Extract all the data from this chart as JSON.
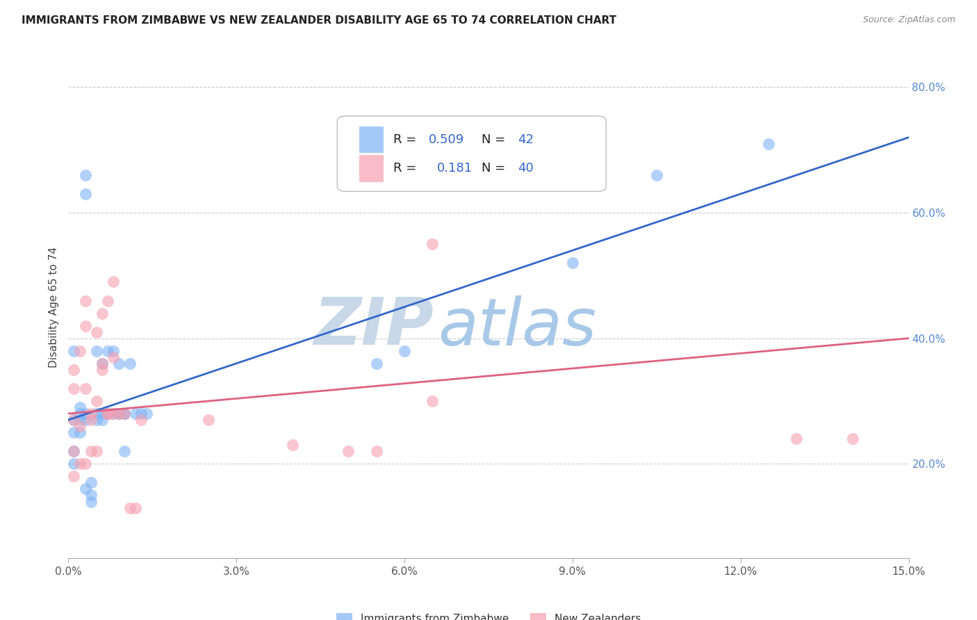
{
  "title": "IMMIGRANTS FROM ZIMBABWE VS NEW ZEALANDER DISABILITY AGE 65 TO 74 CORRELATION CHART",
  "source": "Source: ZipAtlas.com",
  "ylabel": "Disability Age 65 to 74",
  "xlim": [
    0.0,
    0.15
  ],
  "ylim": [
    0.05,
    0.85
  ],
  "xticks": [
    0.0,
    0.03,
    0.06,
    0.09,
    0.12,
    0.15
  ],
  "xtick_labels": [
    "0.0%",
    "3.0%",
    "6.0%",
    "9.0%",
    "12.0%",
    "15.0%"
  ],
  "yticks_right": [
    0.2,
    0.4,
    0.6,
    0.8
  ],
  "ytick_labels_right": [
    "20.0%",
    "40.0%",
    "60.0%",
    "80.0%"
  ],
  "grid_color": "#cccccc",
  "background_color": "#ffffff",
  "series1_color": "#7fb3f5",
  "series2_color": "#f5a0b0",
  "series1_label": "Immigrants from Zimbabwe",
  "series2_label": "New Zealanders",
  "series1_R": "0.509",
  "series1_N": "42",
  "series2_R": "0.181",
  "series2_N": "40",
  "line1_color": "#3366cc",
  "line2_color": "#e06080",
  "watermark_zip": "ZIP",
  "watermark_atlas": "atlas",
  "watermark_zip_color": "#c8d8e8",
  "watermark_atlas_color": "#a8c8e8",
  "series1_x": [
    0.001,
    0.001,
    0.001,
    0.002,
    0.002,
    0.002,
    0.003,
    0.003,
    0.004,
    0.004,
    0.005,
    0.005,
    0.006,
    0.006,
    0.007,
    0.008,
    0.009,
    0.009,
    0.01,
    0.01,
    0.011,
    0.012,
    0.013,
    0.014,
    0.001,
    0.001,
    0.002,
    0.003,
    0.003,
    0.004,
    0.005,
    0.006,
    0.007,
    0.008,
    0.009,
    0.01,
    0.055,
    0.06,
    0.09,
    0.105,
    0.125,
    0.003
  ],
  "series1_y": [
    0.38,
    0.27,
    0.2,
    0.27,
    0.28,
    0.29,
    0.63,
    0.66,
    0.14,
    0.17,
    0.28,
    0.38,
    0.28,
    0.36,
    0.38,
    0.38,
    0.28,
    0.36,
    0.22,
    0.28,
    0.36,
    0.28,
    0.28,
    0.28,
    0.25,
    0.22,
    0.25,
    0.27,
    0.28,
    0.15,
    0.27,
    0.27,
    0.28,
    0.28,
    0.28,
    0.28,
    0.36,
    0.38,
    0.52,
    0.66,
    0.71,
    0.16
  ],
  "series2_x": [
    0.001,
    0.001,
    0.001,
    0.001,
    0.002,
    0.002,
    0.003,
    0.003,
    0.003,
    0.004,
    0.004,
    0.005,
    0.005,
    0.006,
    0.006,
    0.007,
    0.007,
    0.008,
    0.008,
    0.009,
    0.01,
    0.011,
    0.012,
    0.013,
    0.001,
    0.002,
    0.003,
    0.004,
    0.005,
    0.006,
    0.007,
    0.008,
    0.025,
    0.04,
    0.05,
    0.055,
    0.065,
    0.065,
    0.13,
    0.14
  ],
  "series2_y": [
    0.27,
    0.32,
    0.35,
    0.22,
    0.26,
    0.38,
    0.32,
    0.42,
    0.46,
    0.28,
    0.22,
    0.22,
    0.41,
    0.36,
    0.44,
    0.28,
    0.46,
    0.28,
    0.49,
    0.28,
    0.28,
    0.13,
    0.13,
    0.27,
    0.18,
    0.2,
    0.2,
    0.27,
    0.3,
    0.35,
    0.28,
    0.37,
    0.27,
    0.23,
    0.22,
    0.22,
    0.3,
    0.55,
    0.24,
    0.24
  ]
}
